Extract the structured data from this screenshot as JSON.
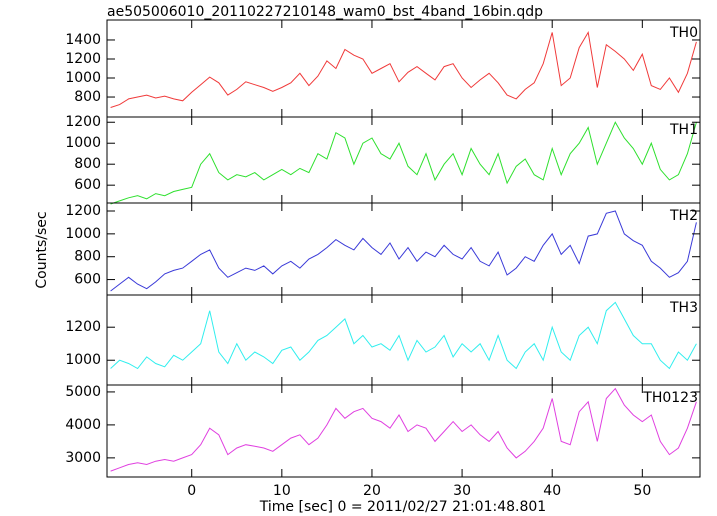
{
  "chart_data": [
    {
      "type": "line",
      "title": "ae505006010_20110227210148_wam0_bst_4band_16bin.qdp",
      "label": "TH0",
      "color": "#f03a3a",
      "x": [
        -9,
        -8,
        -7,
        -6,
        -5,
        -4,
        -3,
        -2,
        -1,
        0,
        1,
        2,
        3,
        4,
        5,
        6,
        7,
        8,
        9,
        10,
        11,
        12,
        13,
        14,
        15,
        16,
        17,
        18,
        19,
        20,
        21,
        22,
        23,
        24,
        25,
        26,
        27,
        28,
        29,
        30,
        31,
        32,
        33,
        34,
        35,
        36,
        37,
        38,
        39,
        40,
        41,
        42,
        43,
        44,
        45,
        46,
        47,
        48,
        49,
        50,
        51,
        52,
        53,
        54,
        55,
        56
      ],
      "values": [
        690,
        720,
        780,
        800,
        820,
        790,
        810,
        780,
        760,
        850,
        930,
        1010,
        950,
        820,
        880,
        960,
        930,
        900,
        860,
        900,
        950,
        1050,
        920,
        1020,
        1180,
        1100,
        1300,
        1240,
        1200,
        1050,
        1100,
        1150,
        960,
        1060,
        1120,
        1050,
        980,
        1120,
        1150,
        1000,
        900,
        980,
        1050,
        950,
        820,
        780,
        880,
        950,
        1150,
        1480,
        920,
        1000,
        1320,
        1480,
        900,
        1350,
        1280,
        1200,
        1080,
        1250,
        920,
        880,
        1000,
        850,
        1050,
        1380
      ],
      "xlim": [
        -9.4,
        56.4
      ],
      "ylim": [
        590,
        1610
      ],
      "yticks": [
        800,
        1000,
        1200,
        1400
      ]
    },
    {
      "type": "line",
      "label": "TH1",
      "color": "#2ee02e",
      "x": [
        -9,
        -8,
        -7,
        -6,
        -5,
        -4,
        -3,
        -2,
        -1,
        0,
        1,
        2,
        3,
        4,
        5,
        6,
        7,
        8,
        9,
        10,
        11,
        12,
        13,
        14,
        15,
        16,
        17,
        18,
        19,
        20,
        21,
        22,
        23,
        24,
        25,
        26,
        27,
        28,
        29,
        30,
        31,
        32,
        33,
        34,
        35,
        36,
        37,
        38,
        39,
        40,
        41,
        42,
        43,
        44,
        45,
        46,
        47,
        48,
        49,
        50,
        51,
        52,
        53,
        54,
        55,
        56
      ],
      "values": [
        420,
        450,
        480,
        500,
        470,
        520,
        500,
        540,
        560,
        580,
        800,
        900,
        720,
        650,
        700,
        680,
        720,
        650,
        700,
        750,
        700,
        760,
        720,
        900,
        850,
        1100,
        1050,
        800,
        1000,
        1050,
        900,
        850,
        1000,
        780,
        700,
        900,
        650,
        800,
        900,
        700,
        950,
        800,
        700,
        900,
        620,
        780,
        850,
        700,
        650,
        950,
        700,
        900,
        1000,
        1150,
        800,
        1000,
        1200,
        1050,
        950,
        800,
        1000,
        750,
        650,
        700,
        900,
        1200
      ],
      "xlim": [
        -9.4,
        56.4
      ],
      "ylim": [
        430,
        1250
      ],
      "yticks": [
        600,
        800,
        1000,
        1200
      ]
    },
    {
      "type": "line",
      "label": "TH2",
      "color": "#3a3ad8",
      "ylabel": "Counts/sec",
      "x": [
        -9,
        -8,
        -7,
        -6,
        -5,
        -4,
        -3,
        -2,
        -1,
        0,
        1,
        2,
        3,
        4,
        5,
        6,
        7,
        8,
        9,
        10,
        11,
        12,
        13,
        14,
        15,
        16,
        17,
        18,
        19,
        20,
        21,
        22,
        23,
        24,
        25,
        26,
        27,
        28,
        29,
        30,
        31,
        32,
        33,
        34,
        35,
        36,
        37,
        38,
        39,
        40,
        41,
        42,
        43,
        44,
        45,
        46,
        47,
        48,
        49,
        50,
        51,
        52,
        53,
        54,
        55,
        56
      ],
      "values": [
        500,
        560,
        620,
        560,
        520,
        580,
        650,
        680,
        700,
        760,
        820,
        860,
        700,
        620,
        660,
        700,
        680,
        720,
        650,
        720,
        760,
        700,
        780,
        820,
        880,
        950,
        900,
        860,
        960,
        880,
        820,
        920,
        780,
        880,
        760,
        840,
        800,
        900,
        820,
        780,
        880,
        760,
        720,
        840,
        640,
        700,
        800,
        760,
        900,
        1000,
        820,
        900,
        740,
        980,
        1000,
        1180,
        1200,
        1000,
        940,
        900,
        760,
        700,
        620,
        660,
        760,
        1100
      ],
      "xlim": [
        -9.4,
        56.4
      ],
      "ylim": [
        465,
        1270
      ],
      "yticks": [
        600,
        800,
        1000,
        1200
      ]
    },
    {
      "type": "line",
      "label": "TH3",
      "color": "#30eeee",
      "x": [
        -9,
        -8,
        -7,
        -6,
        -5,
        -4,
        -3,
        -2,
        -1,
        0,
        1,
        2,
        3,
        4,
        5,
        6,
        7,
        8,
        9,
        10,
        11,
        12,
        13,
        14,
        15,
        16,
        17,
        18,
        19,
        20,
        21,
        22,
        23,
        24,
        25,
        26,
        27,
        28,
        29,
        30,
        31,
        32,
        33,
        34,
        35,
        36,
        37,
        38,
        39,
        40,
        41,
        42,
        43,
        44,
        45,
        46,
        47,
        48,
        49,
        50,
        51,
        52,
        53,
        54,
        55,
        56
      ],
      "values": [
        950,
        1000,
        980,
        950,
        1020,
        980,
        960,
        1030,
        1000,
        1050,
        1100,
        1300,
        1050,
        980,
        1100,
        1000,
        1050,
        1020,
        980,
        1060,
        1080,
        1000,
        1050,
        1120,
        1150,
        1200,
        1250,
        1100,
        1150,
        1080,
        1100,
        1060,
        1150,
        1000,
        1120,
        1050,
        1080,
        1150,
        1020,
        1100,
        1050,
        1100,
        1000,
        1150,
        1000,
        950,
        1050,
        1100,
        1000,
        1200,
        1050,
        1000,
        1150,
        1200,
        1100,
        1300,
        1350,
        1250,
        1150,
        1100,
        1100,
        1000,
        950,
        1050,
        1000,
        1100
      ],
      "xlim": [
        -9.4,
        56.4
      ],
      "ylim": [
        850,
        1395
      ],
      "yticks": [
        1000,
        1200
      ]
    },
    {
      "type": "line",
      "label": "TH0123",
      "color": "#e040e0",
      "xlabel": "Time [sec] 0 = 2011/02/27 21:01:48.801",
      "x": [
        -9,
        -8,
        -7,
        -6,
        -5,
        -4,
        -3,
        -2,
        -1,
        0,
        1,
        2,
        3,
        4,
        5,
        6,
        7,
        8,
        9,
        10,
        11,
        12,
        13,
        14,
        15,
        16,
        17,
        18,
        19,
        20,
        21,
        22,
        23,
        24,
        25,
        26,
        27,
        28,
        29,
        30,
        31,
        32,
        33,
        34,
        35,
        36,
        37,
        38,
        39,
        40,
        41,
        42,
        43,
        44,
        45,
        46,
        47,
        48,
        49,
        50,
        51,
        52,
        53,
        54,
        55,
        56
      ],
      "values": [
        2600,
        2700,
        2800,
        2850,
        2800,
        2900,
        2950,
        2900,
        3000,
        3100,
        3400,
        3900,
        3700,
        3100,
        3300,
        3400,
        3350,
        3300,
        3200,
        3400,
        3600,
        3700,
        3400,
        3600,
        4000,
        4500,
        4200,
        4400,
        4500,
        4200,
        4100,
        3900,
        4300,
        3800,
        4000,
        3900,
        3500,
        3800,
        4100,
        3800,
        4000,
        3700,
        3500,
        3800,
        3300,
        3000,
        3200,
        3500,
        3900,
        4800,
        3500,
        3400,
        4400,
        4700,
        3500,
        4800,
        5100,
        4600,
        4300,
        4100,
        4300,
        3500,
        3100,
        3300,
        3900,
        4700
      ],
      "xlim": [
        -9.4,
        56.4
      ],
      "ylim": [
        2420,
        5210
      ],
      "yticks": [
        3000,
        4000,
        5000
      ],
      "xticks": [
        0,
        10,
        20,
        30,
        40,
        50
      ]
    }
  ]
}
